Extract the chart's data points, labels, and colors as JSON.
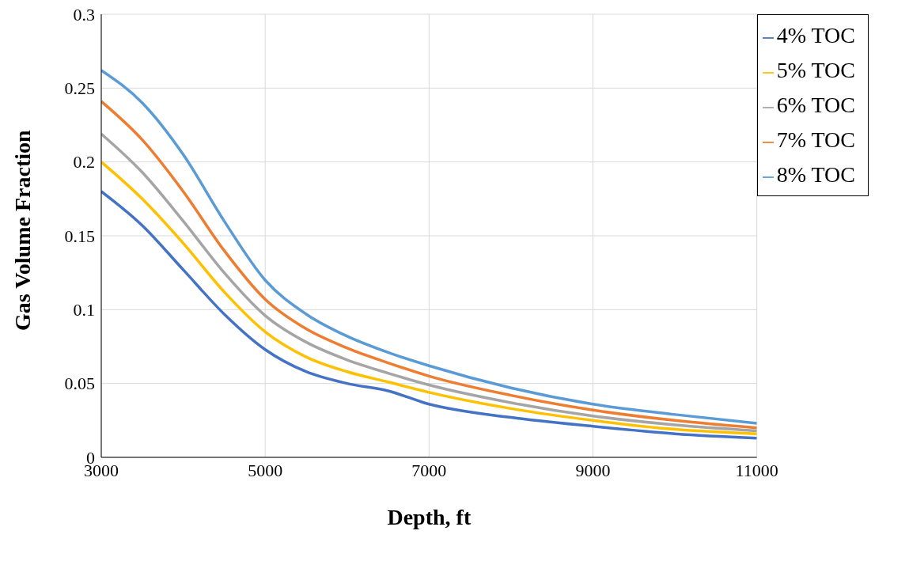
{
  "chart_data": {
    "type": "line",
    "xlabel": "Depth, ft",
    "ylabel": "Gas Volume Fraction",
    "x": [
      3000,
      3500,
      4000,
      4500,
      5000,
      5500,
      6000,
      6500,
      7000,
      8000,
      9000,
      10000,
      11000
    ],
    "series": [
      {
        "name": "8% TOC",
        "color": "#5b9bd5",
        "values": [
          0.262,
          0.24,
          0.205,
          0.16,
          0.12,
          0.097,
          0.082,
          0.071,
          0.062,
          0.047,
          0.036,
          0.029,
          0.023
        ]
      },
      {
        "name": "7% TOC",
        "color": "#ed7d31",
        "values": [
          0.241,
          0.215,
          0.18,
          0.14,
          0.107,
          0.087,
          0.074,
          0.064,
          0.055,
          0.042,
          0.032,
          0.025,
          0.02
        ]
      },
      {
        "name": "6% TOC",
        "color": "#a5a5a5",
        "values": [
          0.219,
          0.193,
          0.16,
          0.125,
          0.096,
          0.078,
          0.066,
          0.057,
          0.049,
          0.037,
          0.028,
          0.022,
          0.018
        ]
      },
      {
        "name": "5% TOC",
        "color": "#ffc000",
        "values": [
          0.2,
          0.175,
          0.145,
          0.112,
          0.085,
          0.068,
          0.058,
          0.051,
          0.044,
          0.033,
          0.025,
          0.019,
          0.016
        ]
      },
      {
        "name": "4% TOC",
        "color": "#4472c4",
        "values": [
          0.18,
          0.157,
          0.127,
          0.097,
          0.073,
          0.058,
          0.05,
          0.045,
          0.036,
          0.027,
          0.021,
          0.016,
          0.013
        ]
      }
    ],
    "xlim": [
      3000,
      11000
    ],
    "xticks": [
      3000,
      5000,
      7000,
      9000,
      11000
    ],
    "ylim": [
      0,
      0.3
    ],
    "yticks": [
      0,
      0.05,
      0.1,
      0.15,
      0.2,
      0.25,
      0.3
    ],
    "grid": true,
    "legend": "top right",
    "marker": "none",
    "line_style": "solid"
  }
}
